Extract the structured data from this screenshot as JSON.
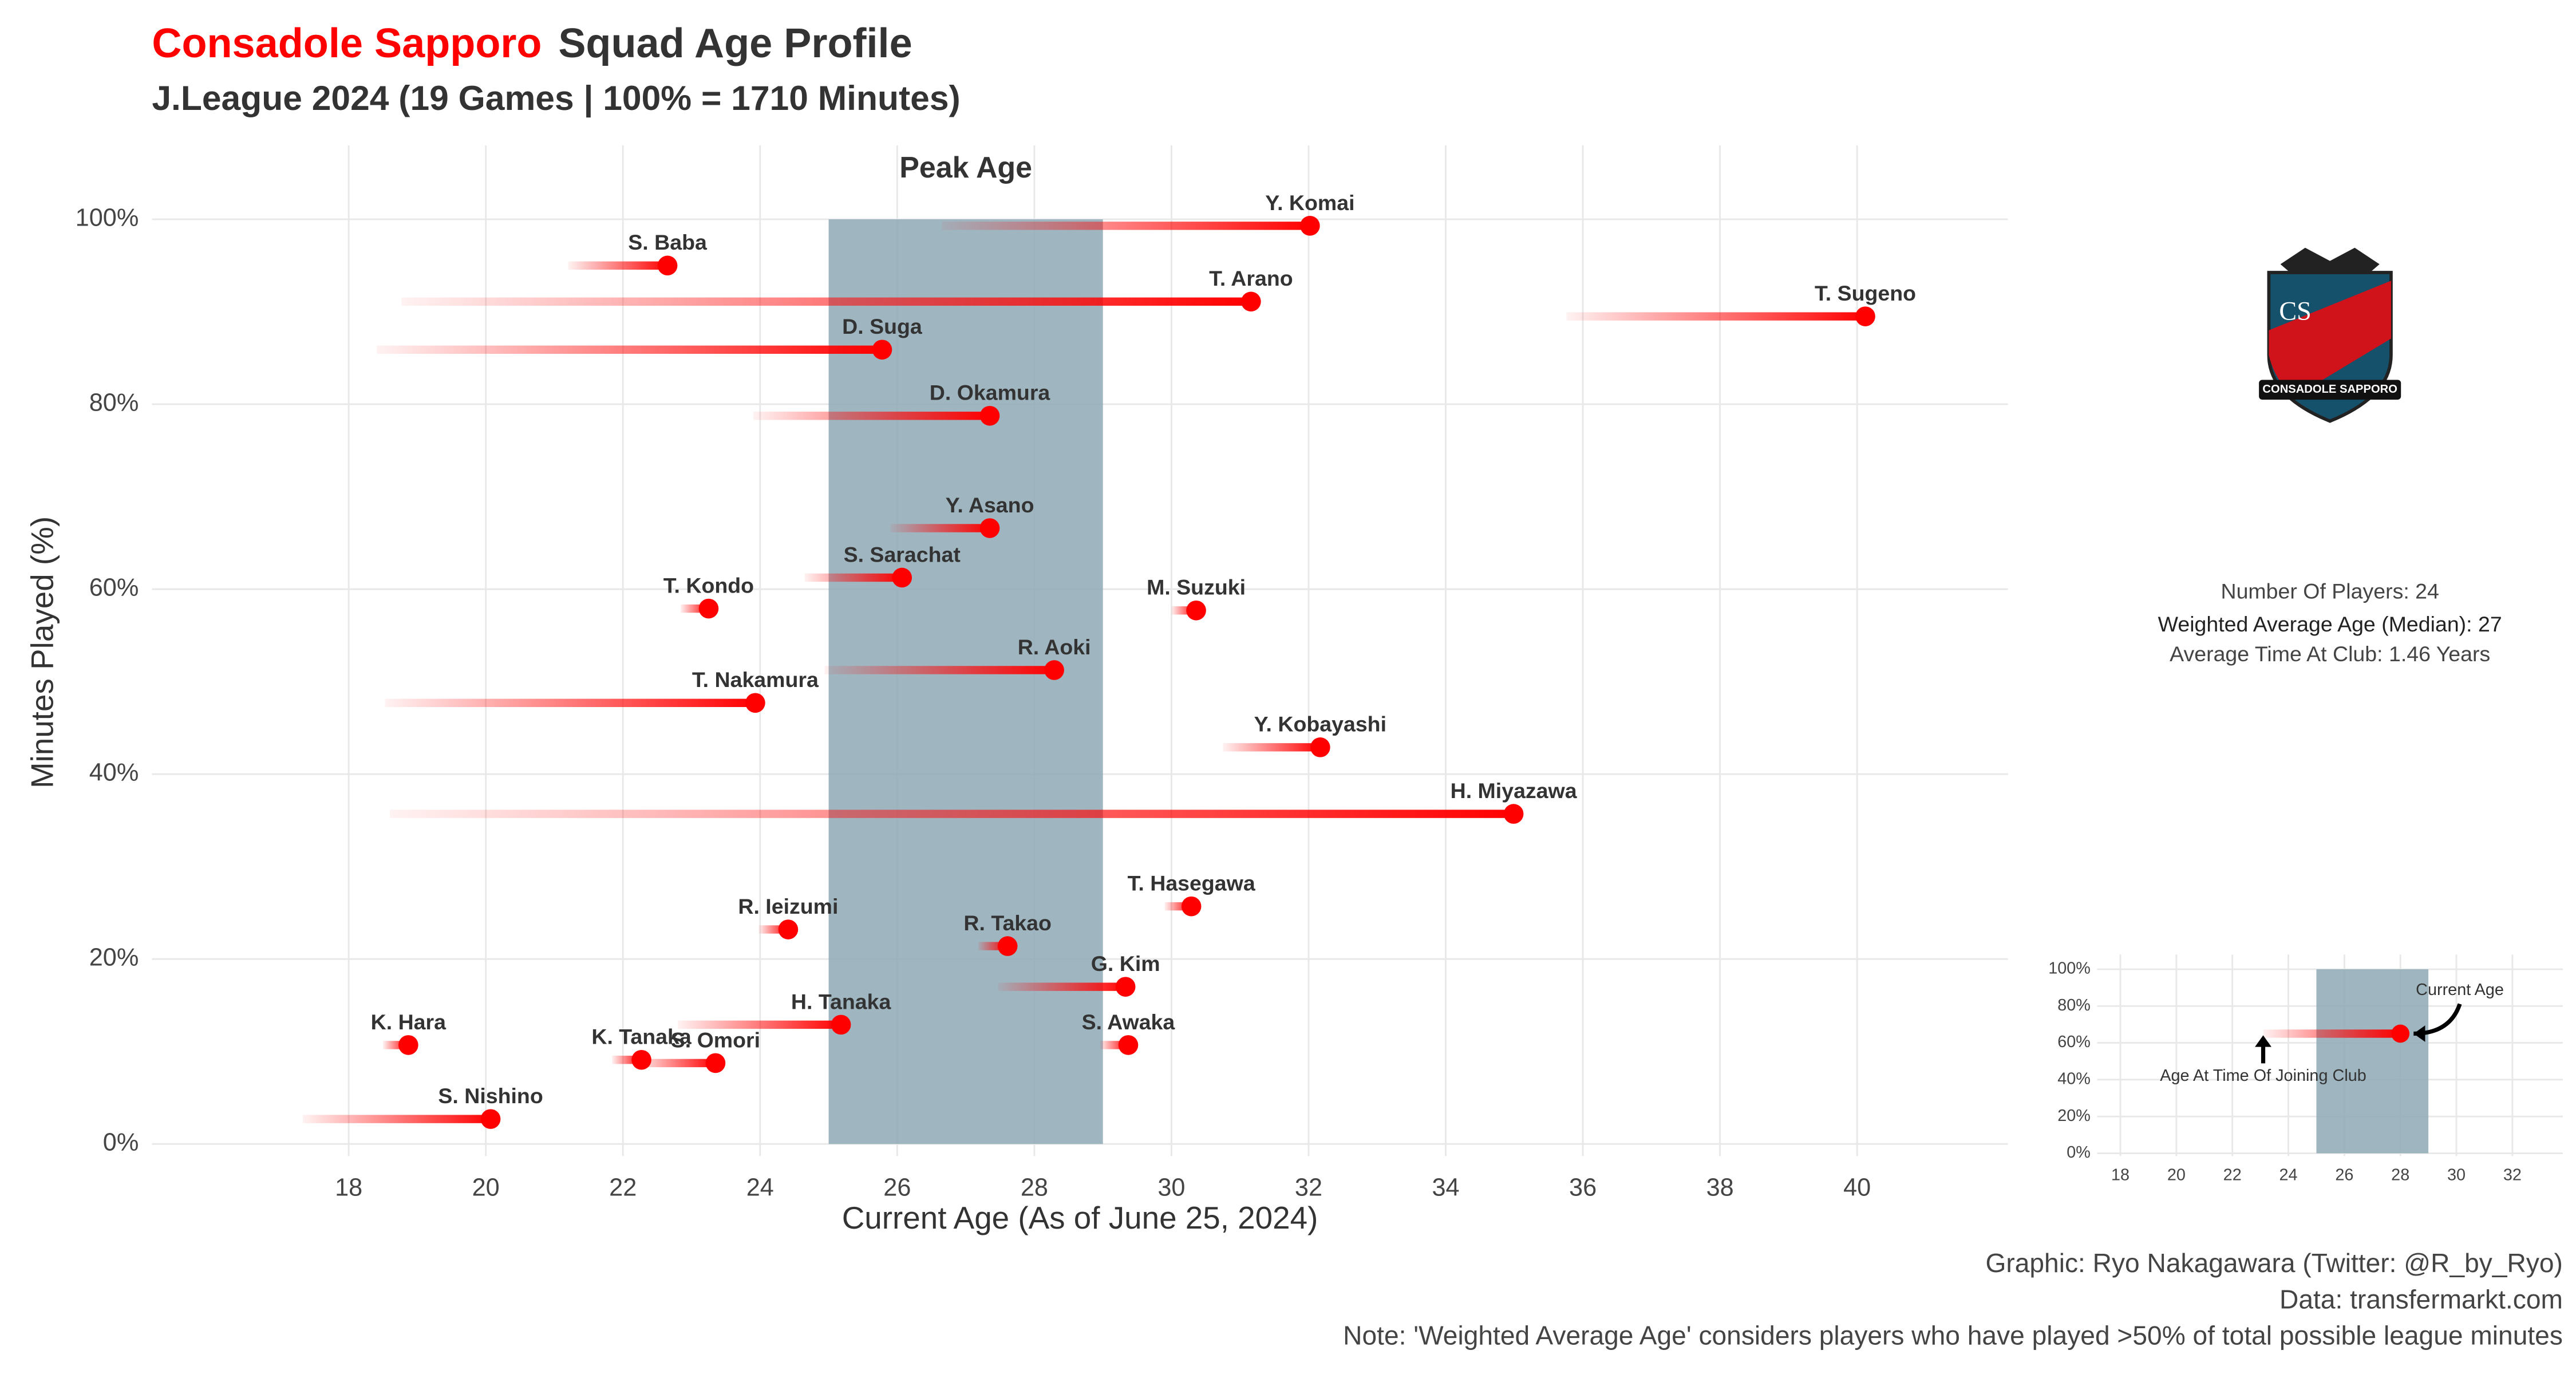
{
  "chart_data": [
    {
      "type": "dumbbell",
      "title_team": "Consadole Sapporo",
      "title": "Squad Age Profile",
      "subtitle": "J.League 2024 (19 Games | 100% = 1710 Minutes)",
      "annotation": "Peak Age",
      "x_label": "Current Age (As of June 25, 2024)",
      "y_label": "Minutes Played (%)",
      "labels": [
        "Y. Komai",
        "S. Baba",
        "T. Arano",
        "T. Sugeno",
        "D. Suga",
        "D. Okamura",
        "Y. Asano",
        "S. Sarachat",
        "T. Kondo",
        "M. Suzuki",
        "R. Aoki",
        "T. Nakamura",
        "Y. Kobayashi",
        "H. Miyazawa",
        "T. Hasegawa",
        "R. Ieizumi",
        "R. Takao",
        "G. Kim",
        "H. Tanaka",
        "K. Hara",
        "S. Awaka",
        "K. Tanaka",
        "S. Omori",
        "S. Nishino"
      ],
      "x_start": [
        26.65,
        21.2,
        18.77,
        35.76,
        18.41,
        23.9,
        25.9,
        24.65,
        22.84,
        30.0,
        24.94,
        18.53,
        30.75,
        18.6,
        29.9,
        23.98,
        27.18,
        27.47,
        22.8,
        18.5,
        28.96,
        21.84,
        22.2,
        17.33
      ],
      "x": [
        32.02,
        22.65,
        31.16,
        40.12,
        25.78,
        27.35,
        27.35,
        26.07,
        23.25,
        30.36,
        28.29,
        23.93,
        32.17,
        34.99,
        30.29,
        24.41,
        27.61,
        29.33,
        25.18,
        18.87,
        29.37,
        22.27,
        23.35,
        20.07
      ],
      "values": [
        99.3,
        95.0,
        91.1,
        89.5,
        85.9,
        78.75,
        66.6,
        61.25,
        57.9,
        57.7,
        51.25,
        47.7,
        42.9,
        35.7,
        25.7,
        23.2,
        21.4,
        17.0,
        12.9,
        10.7,
        10.7,
        9.1,
        8.75,
        2.7
      ],
      "color": "#ff0000",
      "peak_band": [
        25,
        29
      ],
      "band_color": "#8ea9b6",
      "xlim": [
        15.13,
        42.2
      ],
      "ylim": [
        -1.3,
        108
      ],
      "xticks": [
        18,
        20,
        22,
        24,
        26,
        28,
        30,
        32,
        34,
        36,
        38,
        40
      ],
      "yticks": [
        {
          "value": 0,
          "label": "0%"
        },
        {
          "value": 20,
          "label": "20%"
        },
        {
          "value": 40,
          "label": "40%"
        },
        {
          "value": 60,
          "label": "60%"
        },
        {
          "value": 80,
          "label": "80%"
        },
        {
          "value": 100,
          "label": "100%"
        }
      ],
      "grid": true,
      "stats": [
        "Number Of Players: 24",
        "Weighted Average Age (Median): 27",
        "Average Time At Club: 1.46 Years"
      ],
      "caption": [
        "Graphic: Ryo Nakagawara (Twitter: @R_by_Ryo)",
        "Data: transfermarkt.com",
        "Note: 'Weighted Average Age' considers players who have played >50% of total possible league minutes"
      ],
      "logo_text": [
        "CS",
        "CONSADOLE SAPPORO"
      ]
    },
    {
      "type": "dumbbell",
      "x_start": [
        23.1
      ],
      "x": [
        28
      ],
      "values": [
        65
      ],
      "color": "#ff0000",
      "peak_band": [
        25,
        29
      ],
      "band_color": "#8ea9b6",
      "annotations": [
        "Current Age",
        "Age At Time Of Joining Club"
      ],
      "xlim": [
        17.17,
        33.8
      ],
      "ylim": [
        -1.5,
        108
      ],
      "xticks": [
        18,
        20,
        22,
        24,
        26,
        28,
        30,
        32
      ],
      "yticks": [
        {
          "value": 0,
          "label": "0%"
        },
        {
          "value": 20,
          "label": "20%"
        },
        {
          "value": 40,
          "label": "40%"
        },
        {
          "value": 60,
          "label": "60%"
        },
        {
          "value": 80,
          "label": "80%"
        },
        {
          "value": 100,
          "label": "100%"
        }
      ],
      "grid": true
    }
  ]
}
